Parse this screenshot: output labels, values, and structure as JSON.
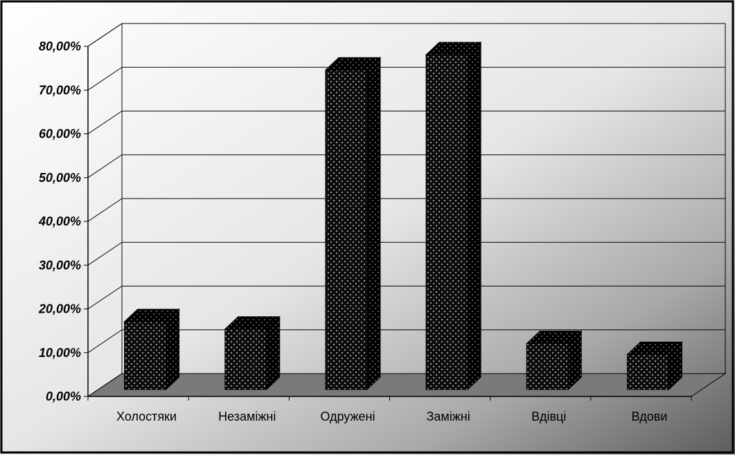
{
  "chart_data": {
    "type": "bar",
    "title": "",
    "xlabel": "",
    "ylabel": "",
    "categories": [
      "Холостяки",
      "Незаміжні",
      "Одружені",
      "Заміжні",
      "Вдівці",
      "Вдови"
    ],
    "values": [
      15.5,
      13.8,
      73.0,
      76.5,
      10.5,
      8.0
    ],
    "unit": "%",
    "ylim": [
      0,
      80
    ],
    "yticks": [
      "0,00%",
      "10,00%",
      "20,00%",
      "30,00%",
      "40,00%",
      "50,00%",
      "60,00%",
      "70,00%",
      "80,00%"
    ],
    "grid": true,
    "legend": "none",
    "style": "3d-column",
    "colors": {
      "bar_fill": "#0d0d0d",
      "bar_dots": "#ffffff",
      "floor": "#7a7a7a",
      "gridline": "#000000",
      "background_light": "#ffffff",
      "background_dark": "#5c5c5c"
    }
  }
}
